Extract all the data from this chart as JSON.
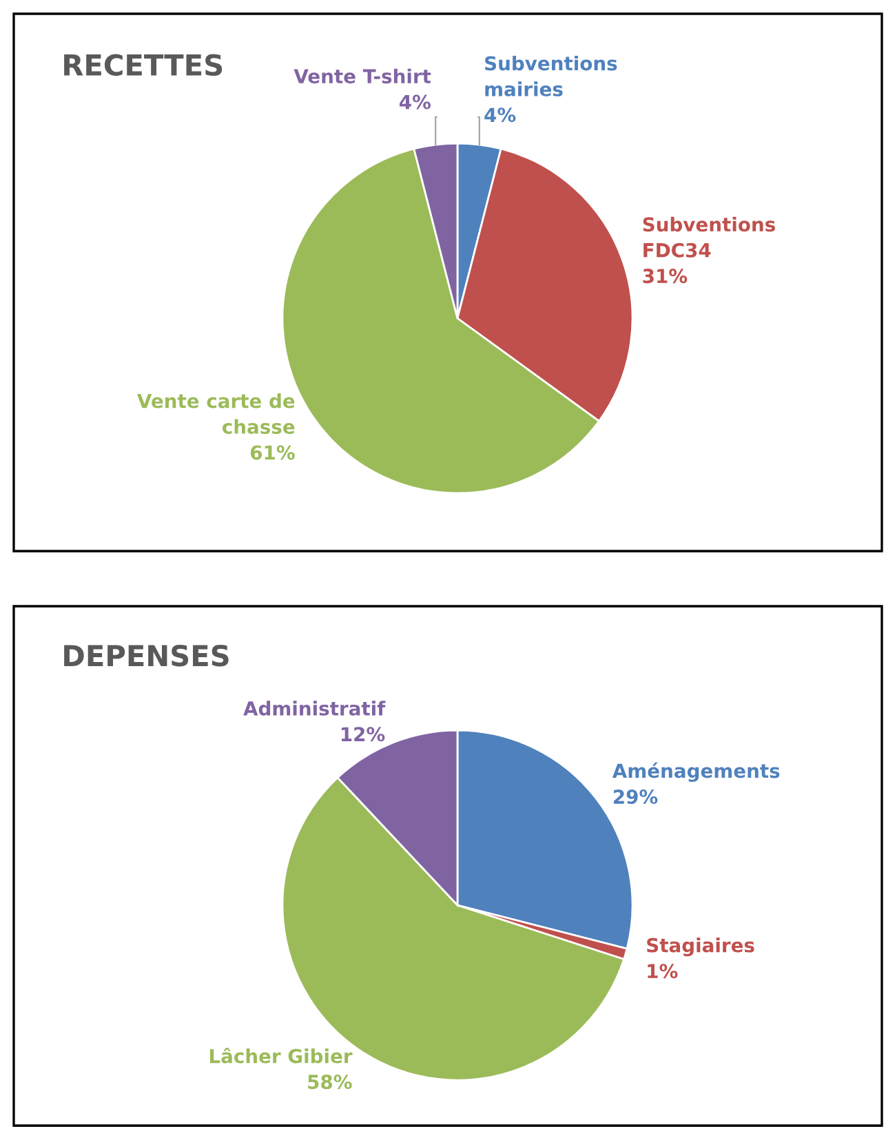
{
  "chart_data": [
    {
      "type": "pie",
      "title": "RECETTES",
      "categories": [
        "Subventions\nmairies",
        "Subventions\nFDC34",
        "Vente carte de\nchasse",
        "Vente T-shirt"
      ],
      "values": [
        4,
        31,
        61,
        4
      ],
      "colors": [
        "#4f81bd",
        "#c0504d",
        "#9bbb59",
        "#8064a2"
      ],
      "value_labels": [
        "4%",
        "31%",
        "61%",
        "4%"
      ]
    },
    {
      "type": "pie",
      "title": "DEPENSES",
      "categories": [
        "Aménagements",
        "Stagiaires",
        "Lâcher Gibier",
        "Administratif"
      ],
      "values": [
        29,
        1,
        58,
        12
      ],
      "colors": [
        "#4f81bd",
        "#c0504d",
        "#9bbb59",
        "#8064a2"
      ],
      "value_labels": [
        "29%",
        "1%",
        "58%",
        "12%"
      ]
    }
  ]
}
